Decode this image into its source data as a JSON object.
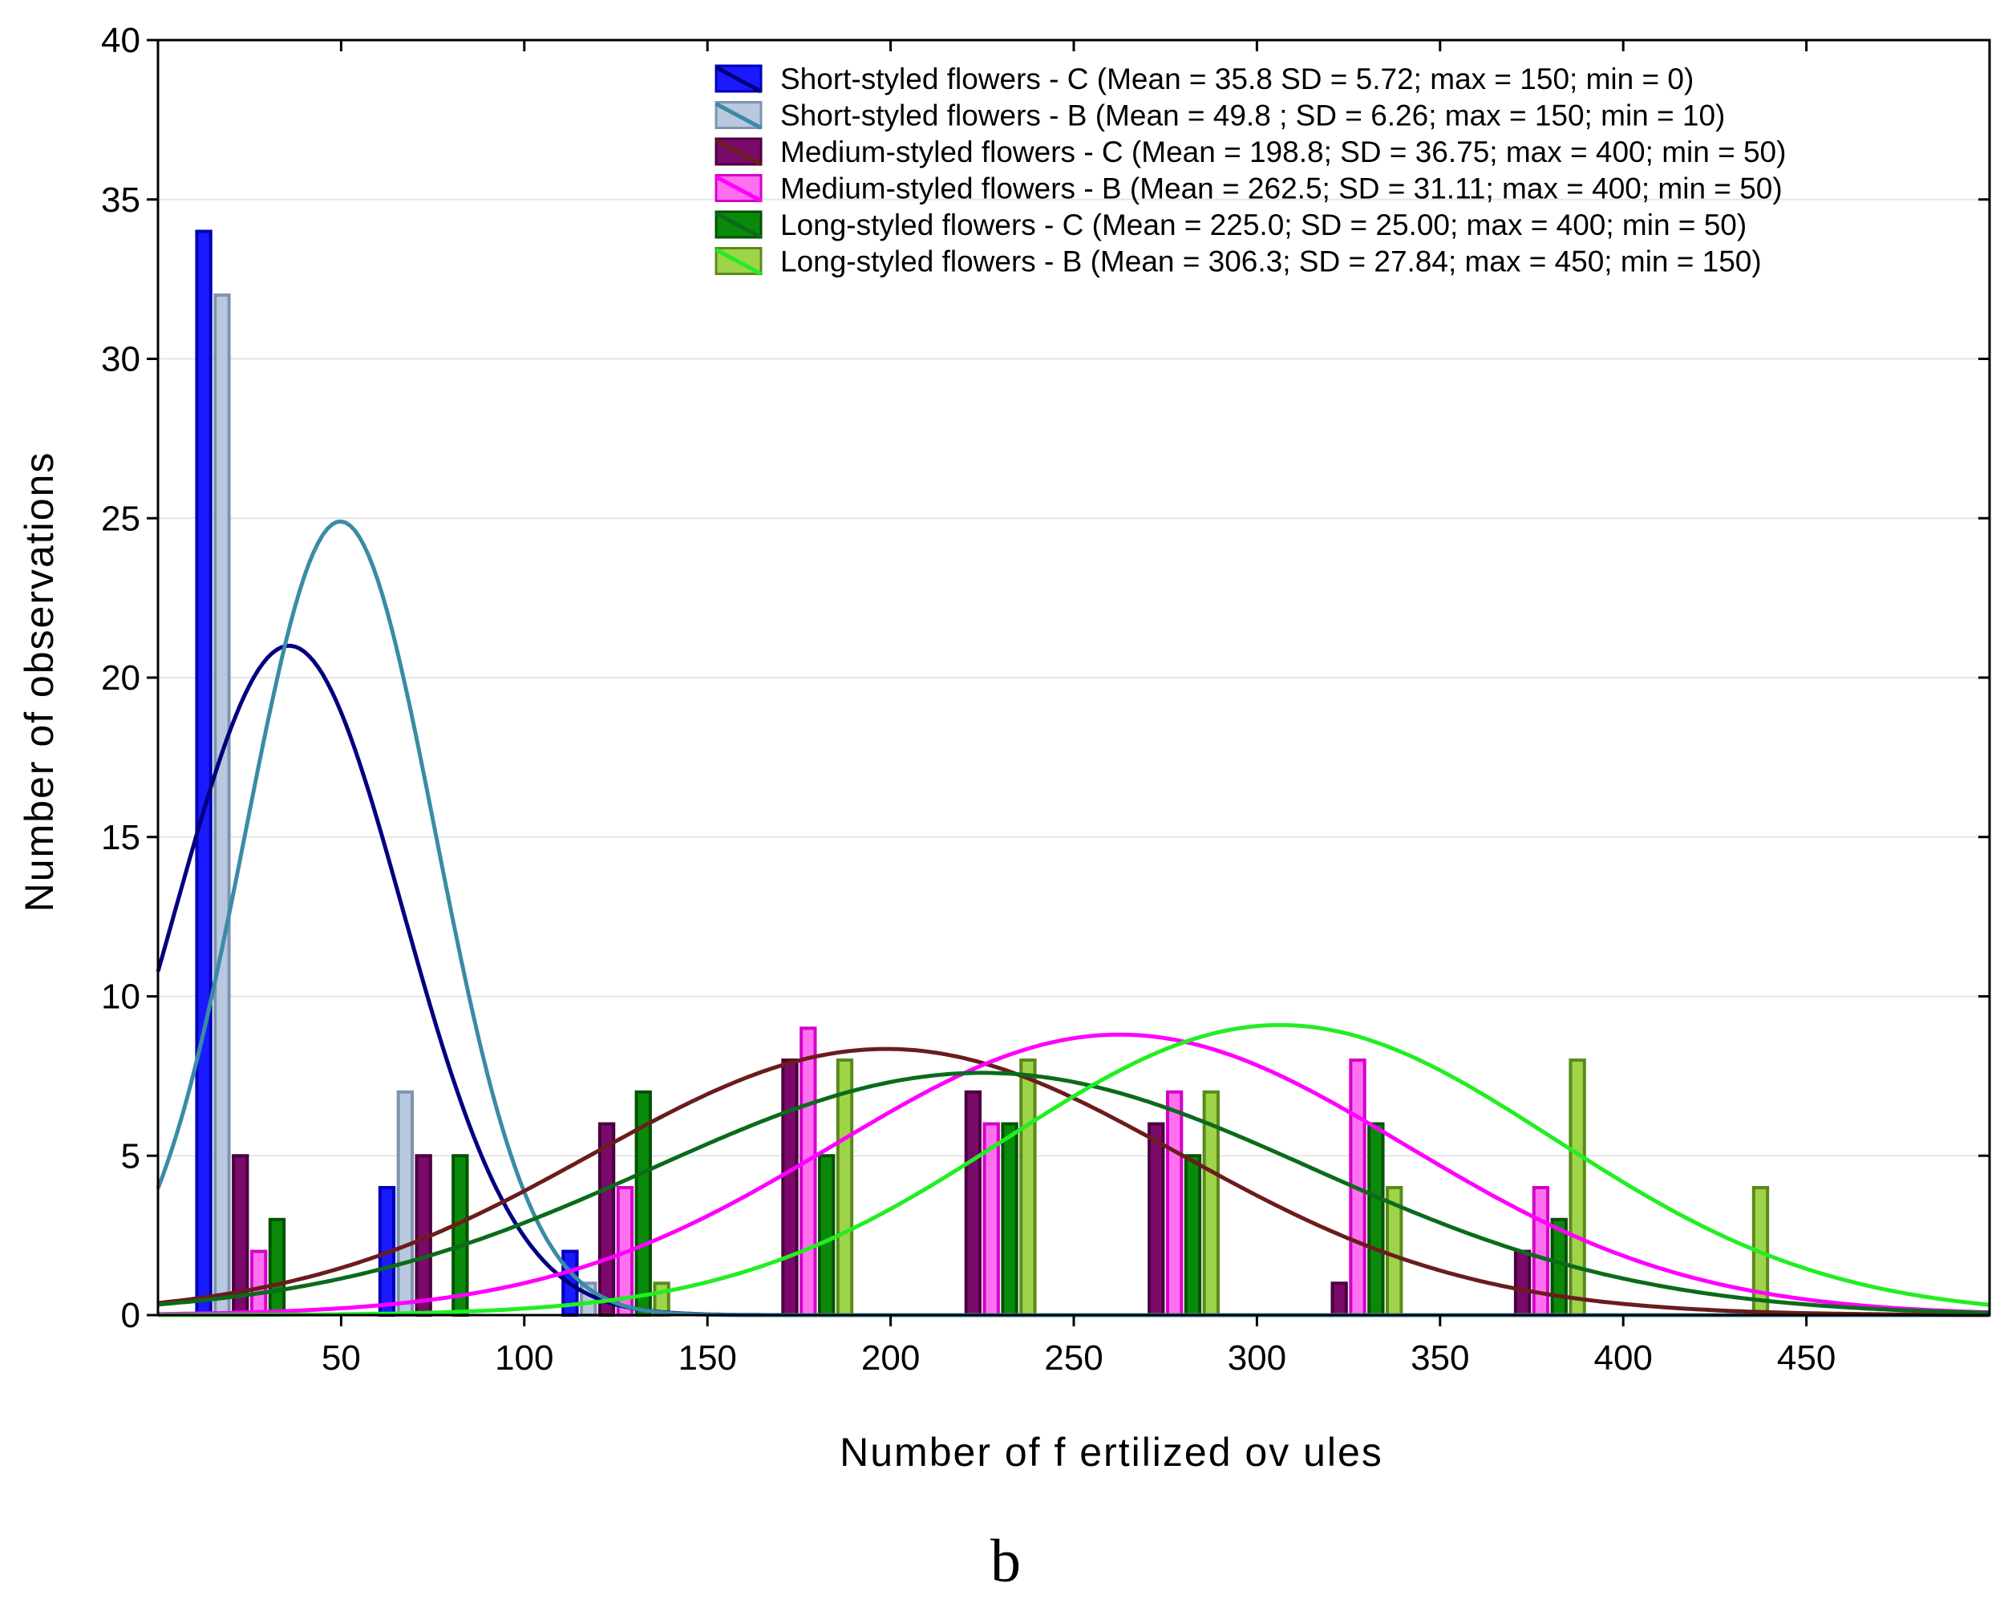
{
  "panel_label": "b",
  "chart_data": {
    "type": "bar",
    "xlabel": "Number of  f ertilized ov ules",
    "ylabel": "Number of observations",
    "xlim": [
      0,
      500
    ],
    "ylim": [
      0,
      40
    ],
    "xticks": [
      50,
      100,
      150,
      200,
      250,
      300,
      350,
      400,
      450
    ],
    "yticks": [
      0,
      5,
      10,
      15,
      20,
      25,
      30,
      35,
      40
    ],
    "grid": "horizontal",
    "legend_position": "top-right",
    "bin_centers": [
      25,
      75,
      125,
      175,
      225,
      275,
      325,
      375,
      425
    ],
    "series": [
      {
        "name": "Short-styled flowers - C",
        "legend": "Short-styled flowers - C (Mean = 35.8 SD = 5.72; max = 150; min = 0)",
        "values": [
          34,
          4,
          2,
          0,
          0,
          0,
          0,
          0,
          0
        ],
        "fill": "#1a1aff",
        "stroke": "#0000b8",
        "curve": {
          "mean": 35.8,
          "peak": 21.0,
          "sigma": 31
        },
        "curve_color": "#00007f"
      },
      {
        "name": "Short-styled flowers - B",
        "legend": "Short-styled flowers - B (Mean = 49.8 ; SD = 6.26; max = 150; min = 10)",
        "values": [
          32,
          7,
          1,
          0,
          0,
          0,
          0,
          0,
          0
        ],
        "fill": "#b8c8de",
        "stroke": "#7e93ad",
        "curve": {
          "mean": 49.8,
          "peak": 24.9,
          "sigma": 26
        },
        "curve_color": "#3a8ba6"
      },
      {
        "name": "Medium-styled flowers - C",
        "legend": "Medium-styled flowers - C (Mean = 198.8; SD = 36.75; max = 400; min = 50)",
        "values": [
          5,
          5,
          6,
          8,
          7,
          6,
          1,
          2,
          0
        ],
        "fill": "#7a0a6a",
        "stroke": "#4a0040",
        "curve": {
          "mean": 198.8,
          "peak": 8.35,
          "sigma": 80
        },
        "curve_color": "#6b1c1c"
      },
      {
        "name": "Medium-styled flowers - B",
        "legend": "Medium-styled flowers - B (Mean = 262.5; SD = 31.11; max = 400; min = 50)",
        "values": [
          2,
          0,
          4,
          9,
          6,
          7,
          8,
          4,
          0
        ],
        "fill": "#ff70f0",
        "stroke": "#d400c8",
        "curve": {
          "mean": 262.5,
          "peak": 8.8,
          "sigma": 78
        },
        "curve_color": "#ff00ff"
      },
      {
        "name": "Long-styled flowers - C",
        "legend": "Long-styled flowers - C (Mean = 225.0; SD = 25.00; max = 400; min = 50)",
        "values": [
          3,
          5,
          7,
          5,
          6,
          5,
          6,
          3,
          0
        ],
        "fill": "#0a8a0a",
        "stroke": "#045204",
        "curve": {
          "mean": 225.0,
          "peak": 7.6,
          "sigma": 90
        },
        "curve_color": "#0b6b1b"
      },
      {
        "name": "Long-styled flowers - B",
        "legend": "Long-styled flowers - B (Mean = 306.3; SD = 27.84; max = 450; min = 150)",
        "values": [
          0,
          0,
          1,
          8,
          8,
          7,
          4,
          8,
          4
        ],
        "fill": "#9ed44a",
        "stroke": "#5a8a1a",
        "curve": {
          "mean": 306.3,
          "peak": 9.1,
          "sigma": 75
        },
        "curve_color": "#22ee22"
      }
    ]
  }
}
